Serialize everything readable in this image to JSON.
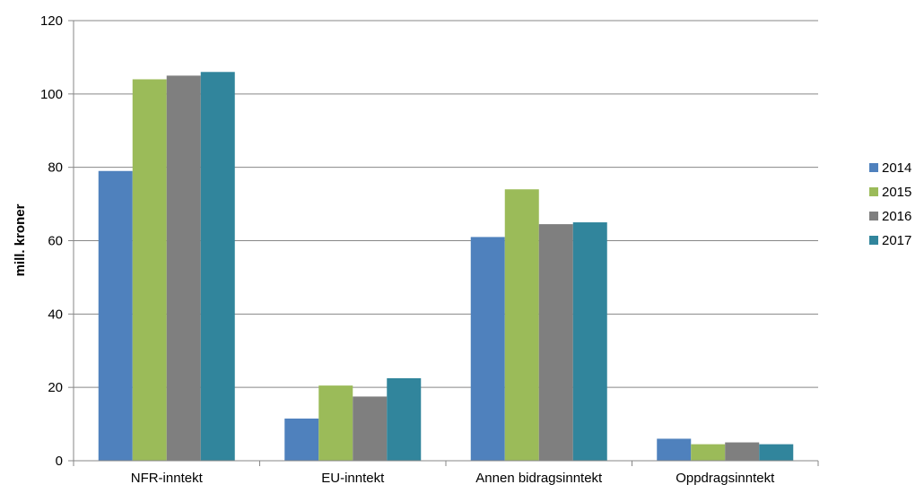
{
  "chart_data": {
    "type": "bar",
    "ylabel": "mill. kroner",
    "xlabel": "",
    "ylim": [
      0,
      120
    ],
    "yticks": [
      0,
      20,
      40,
      60,
      80,
      100,
      120
    ],
    "grid": true,
    "legend_position": "right",
    "categories": [
      "NFR-inntekt",
      "EU-inntekt",
      "Annen bidragsinntekt",
      "Oppdragsinntekt"
    ],
    "series": [
      {
        "name": "2014",
        "color": "#4F81BD",
        "values": [
          79,
          11.5,
          61,
          6
        ]
      },
      {
        "name": "2015",
        "color": "#9BBB59",
        "values": [
          104,
          20.5,
          74,
          4.5
        ]
      },
      {
        "name": "2016",
        "color": "#7F7F7F",
        "values": [
          105,
          17.5,
          64.5,
          5
        ]
      },
      {
        "name": "2017",
        "color": "#31859C",
        "values": [
          106,
          22.5,
          65,
          4.5
        ]
      }
    ]
  }
}
